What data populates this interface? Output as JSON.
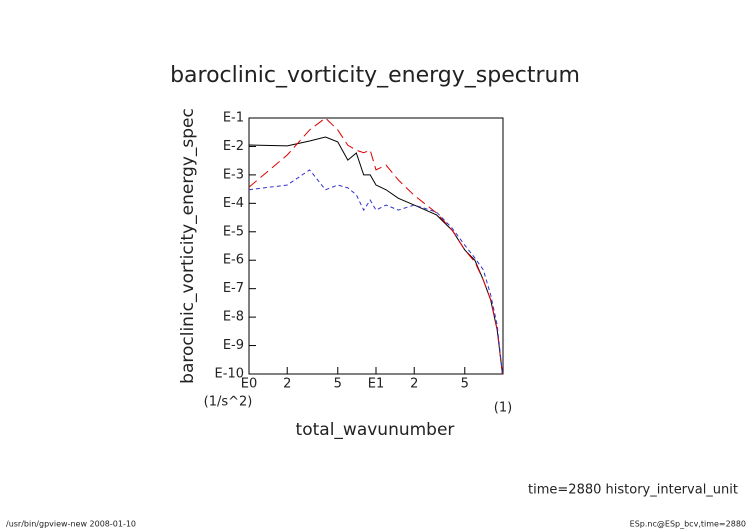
{
  "chart_data": {
    "type": "line",
    "title": "baroclinic_vorticity_energy_spectrum",
    "x_label": "total_wavunumber",
    "x_unit": "(1)",
    "y_label": "baroclinic_vorticity_energy_spec",
    "y_unit": "(1/s^2)",
    "x_log": true,
    "y_log": true,
    "x": [
      1,
      2,
      3,
      4,
      5,
      6,
      7,
      8,
      9,
      10,
      12,
      15,
      20,
      30,
      40,
      50,
      60,
      70,
      80,
      90,
      99
    ],
    "series": [
      {
        "name": "black",
        "color": "#000000",
        "dash": "none",
        "values": [
          0.0112,
          0.0105,
          0.0155,
          0.0214,
          0.0145,
          0.0033,
          0.0059,
          0.001,
          0.001,
          0.00044,
          0.0003,
          0.00015,
          8.7e-05,
          3.9e-05,
          1.1e-05,
          2.3e-06,
          1e-06,
          2e-07,
          4e-08,
          3.5e-09,
          1e-10
        ]
      },
      {
        "name": "red",
        "color": "#e00000",
        "dash": "10 5",
        "values": [
          0.00037,
          0.005,
          0.038,
          0.1,
          0.038,
          0.011,
          0.0074,
          0.006,
          0.0074,
          0.0015,
          0.0022,
          0.00066,
          0.00019,
          4.6e-05,
          1.1e-05,
          2.3e-06,
          8.7e-07,
          2e-07,
          4e-08,
          3.5e-09,
          1e-10
        ]
      },
      {
        "name": "blue",
        "color": "#3333cc",
        "dash": "4 3",
        "values": [
          0.0003,
          0.00044,
          0.0015,
          0.0003,
          0.00044,
          0.00035,
          0.0002,
          5.8e-05,
          0.00013,
          5.8e-05,
          8.7e-05,
          5.8e-05,
          8.7e-05,
          4.9e-05,
          1.3e-05,
          3.4e-06,
          1.2e-06,
          4.6e-07,
          6e-08,
          5.2e-09,
          1e-10
        ]
      }
    ],
    "xlim": [
      1,
      100
    ],
    "ylim": [
      1e-10,
      0.1
    ],
    "xticks": [
      {
        "value": 1,
        "label": "E0"
      },
      2,
      5,
      {
        "value": 10,
        "label": "E1"
      },
      {
        "value": 20,
        "label": "2"
      },
      {
        "value": 50,
        "label": "5"
      }
    ],
    "yticks": [
      {
        "value": 0.1,
        "label": "E-1"
      },
      {
        "value": 0.01,
        "label": "E-2"
      },
      {
        "value": 0.001,
        "label": "E-3"
      },
      {
        "value": 0.0001,
        "label": "E-4"
      },
      {
        "value": 1e-05,
        "label": "E-5"
      },
      {
        "value": 1e-06,
        "label": "E-6"
      },
      {
        "value": 1e-07,
        "label": "E-7"
      },
      {
        "value": 1e-08,
        "label": "E-8"
      },
      {
        "value": 1e-09,
        "label": "E-9"
      },
      {
        "value": 1e-10,
        "label": "E-10"
      }
    ],
    "annotation": "time=2880 history_interval_unit",
    "footer_left": "/usr/bin/gpview-new  2008-01-10",
    "footer_right": "ESp.nc@ESp_bcv,time=2880"
  }
}
